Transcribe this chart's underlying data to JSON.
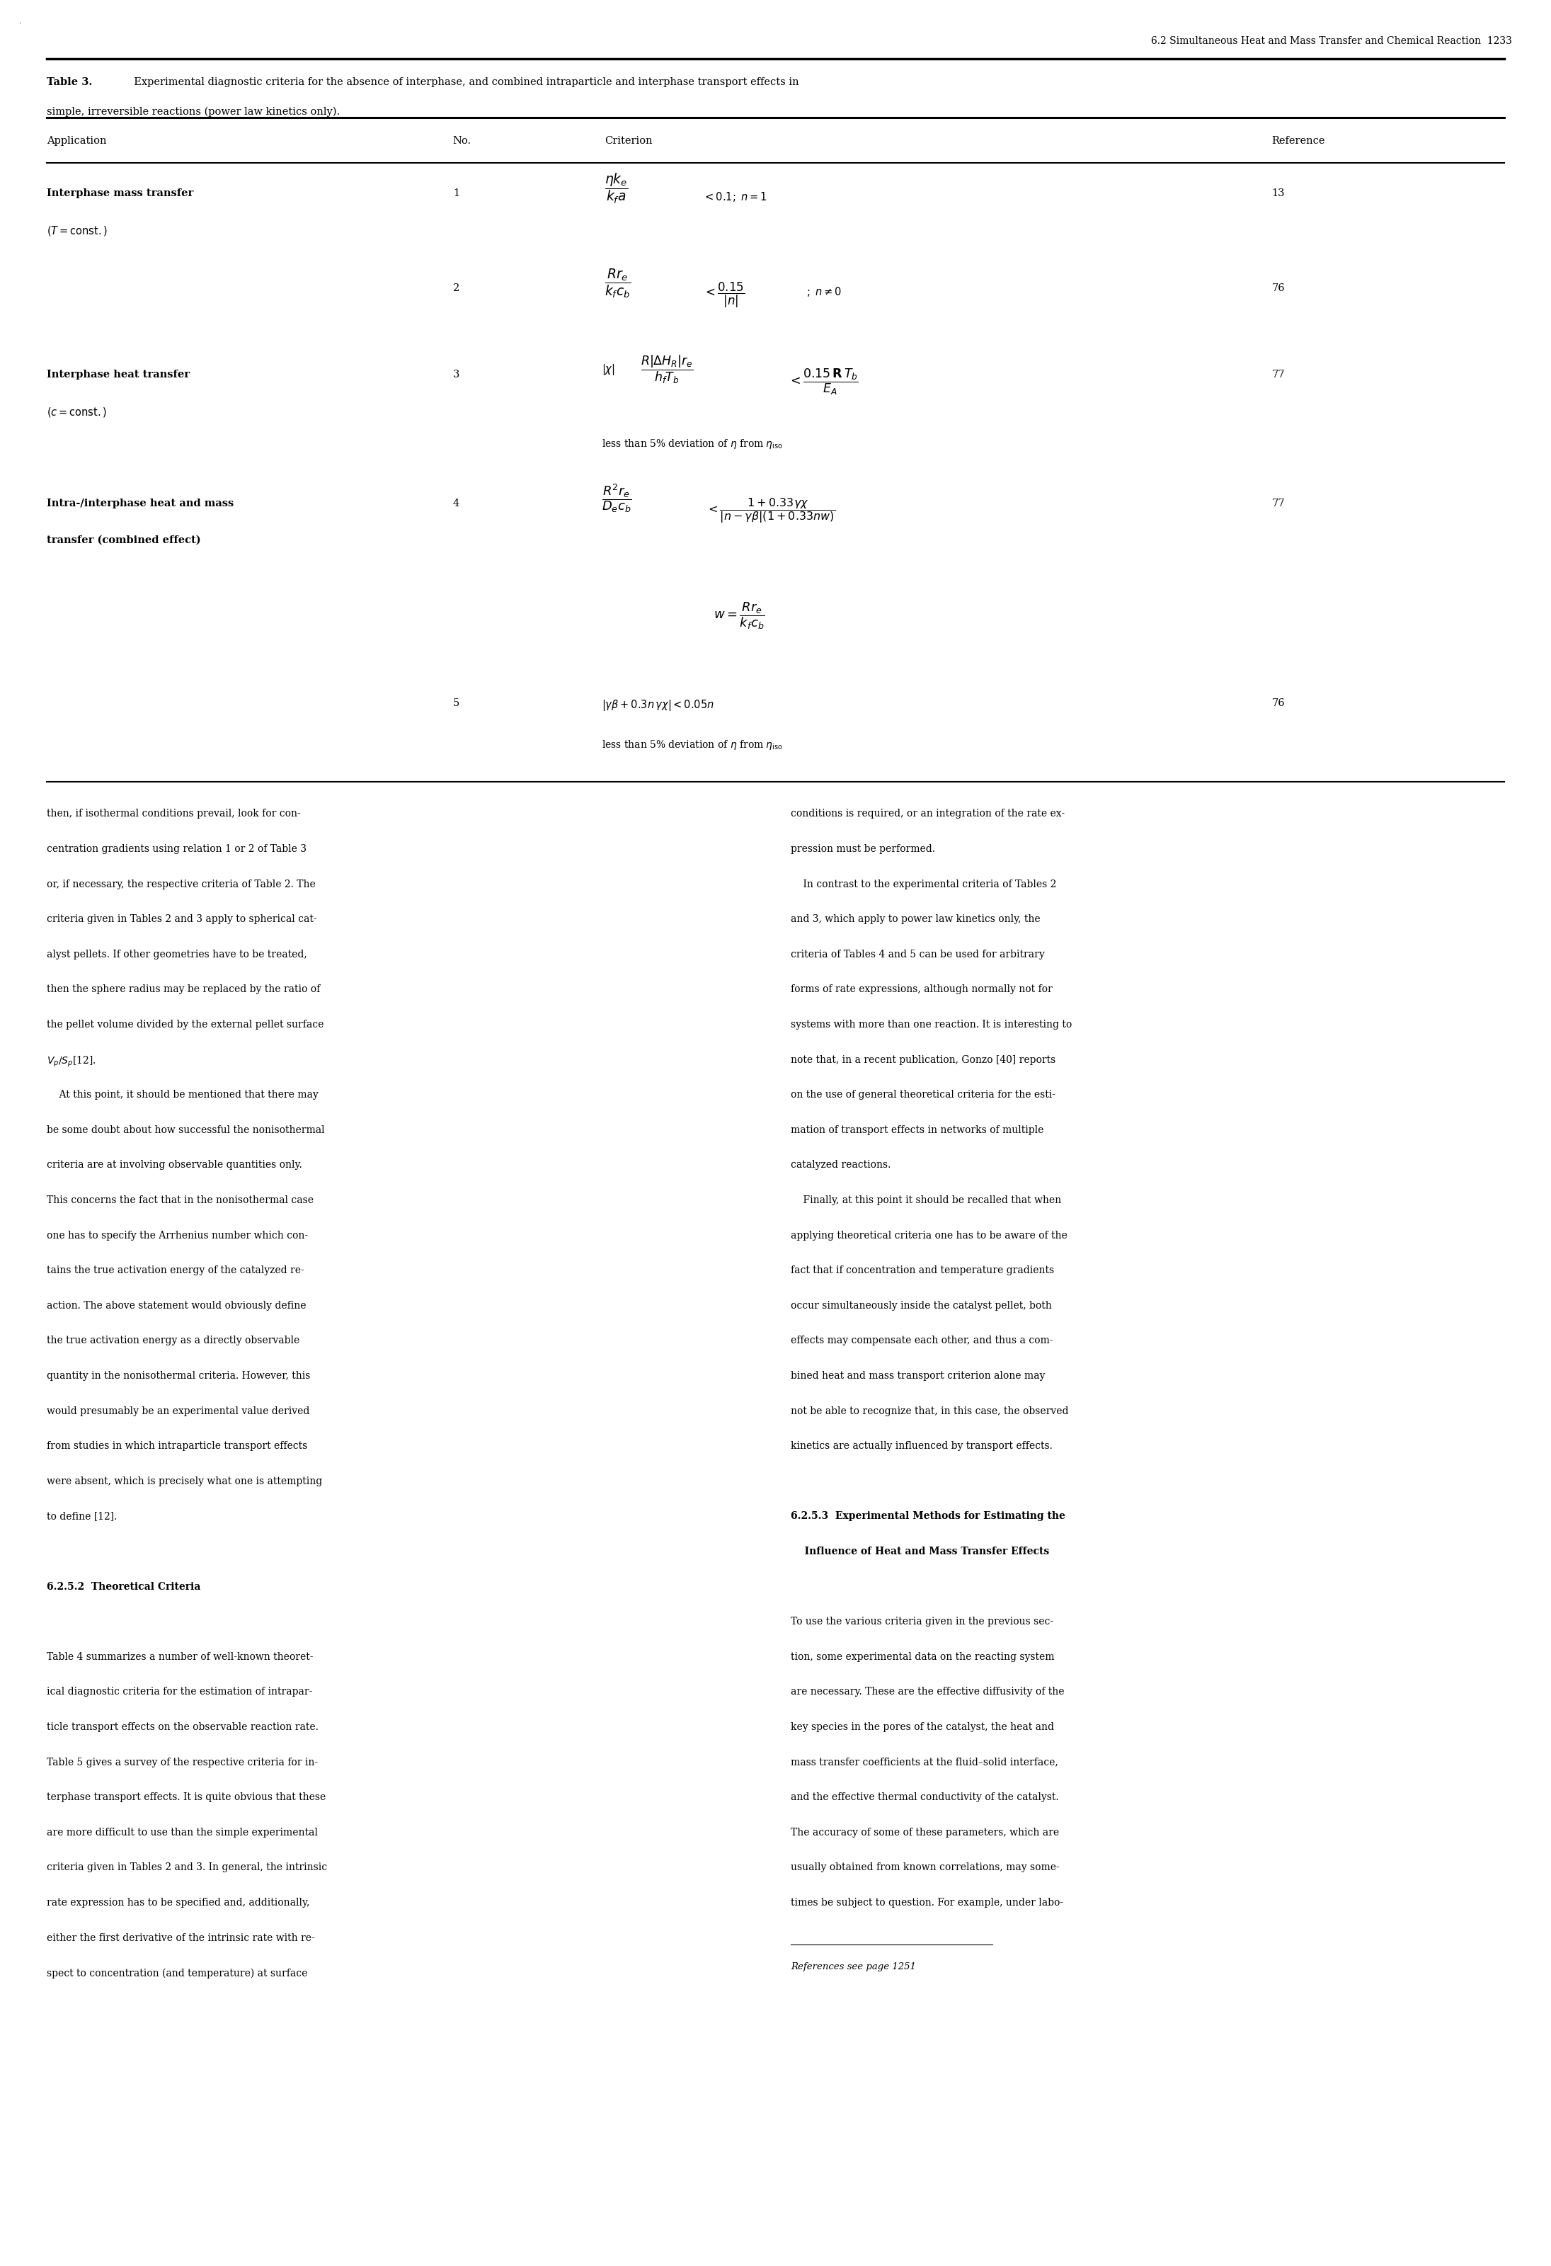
{
  "page_header": "6.2 Simultaneous Heat and Mass Transfer and Chemical Reaction  1233",
  "table_caption_bold": "Table 3.",
  "table_caption_rest": "  Experimental diagnostic criteria for the absence of interphase, and combined intraparticle and interphase transport effects in",
  "table_caption_line2": "simple, irreversible reactions (power law kinetics only).",
  "bg_color": "#ffffff",
  "text_color": "#000000",
  "fig_width": 21.91,
  "fig_height": 32.0
}
